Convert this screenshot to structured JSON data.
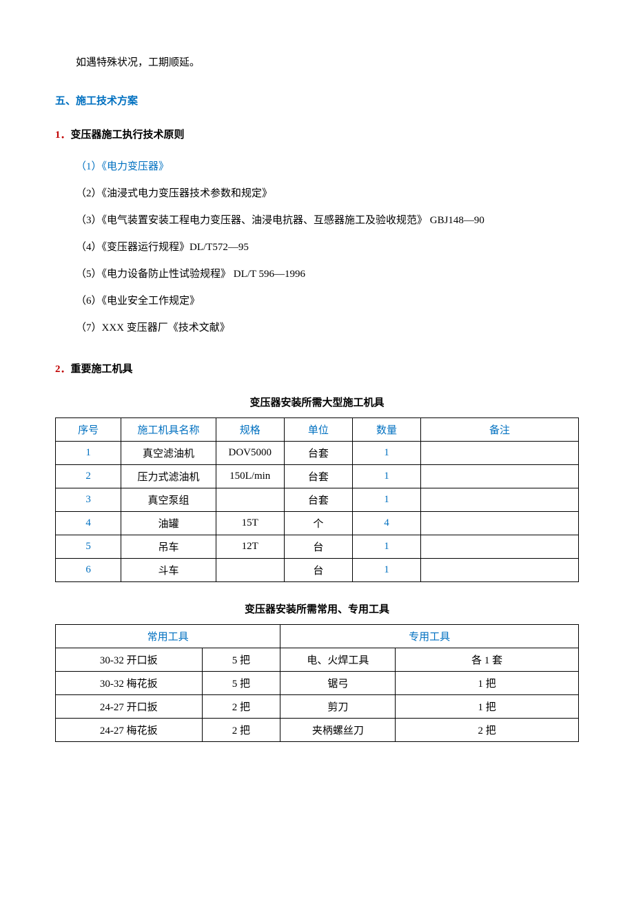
{
  "intro": "如遇特殊状况，工期顺延。",
  "section5": {
    "title": "五、施工技术方案"
  },
  "sub1": {
    "num": "1．",
    "title": "变压器施工执行技术原则"
  },
  "principles": [
    "（1）《电力变压器》",
    "（2）《油浸式电力变压器技术参数和规定》",
    "（3）《电气装置安装工程电力变压器、油浸电抗器、互感器施工及验收规范》 GBJ148—90",
    "（4）《变压器运行规程》DL/T572—95",
    "（5）《电力设备防止性试验规程》 DL/T 596—1996",
    "（6）《电业安全工作规定》",
    "（7）XXX 变压器厂《技术文献》"
  ],
  "sub2": {
    "num": "2．",
    "title": "重要施工机具"
  },
  "table1": {
    "title": "变压器安装所需大型施工机具",
    "headers": [
      "序号",
      "施工机具名称",
      "规格",
      "单位",
      "数量",
      "备注"
    ],
    "rows": [
      [
        "1",
        "真空滤油机",
        "DOV5000",
        "台套",
        "1",
        ""
      ],
      [
        "2",
        "压力式滤油机",
        "150L/min",
        "台套",
        "1",
        ""
      ],
      [
        "3",
        "真空泵组",
        "",
        "台套",
        "1",
        ""
      ],
      [
        "4",
        "油罐",
        "15T",
        "个",
        "4",
        ""
      ],
      [
        "5",
        "吊车",
        "12T",
        "台",
        "1",
        ""
      ],
      [
        "6",
        "斗车",
        "",
        "台",
        "1",
        ""
      ]
    ]
  },
  "table2": {
    "title": "变压器安装所需常用、专用工具",
    "headers": [
      "常用工具",
      "专用工具"
    ],
    "rows": [
      [
        "30-32 开口扳",
        "5 把",
        "电、火焊工具",
        "各 1 套"
      ],
      [
        "30-32 梅花扳",
        "5 把",
        "锯弓",
        "1 把"
      ],
      [
        "24-27 开口扳",
        "2 把",
        "剪刀",
        "1 把"
      ],
      [
        "24-27 梅花扳",
        "2 把",
        "夹柄螺丝刀",
        "2 把"
      ]
    ]
  },
  "colors": {
    "heading_blue": "#0070c0",
    "number_red": "#c00000",
    "text": "#000000",
    "background": "#ffffff",
    "border": "#000000"
  }
}
